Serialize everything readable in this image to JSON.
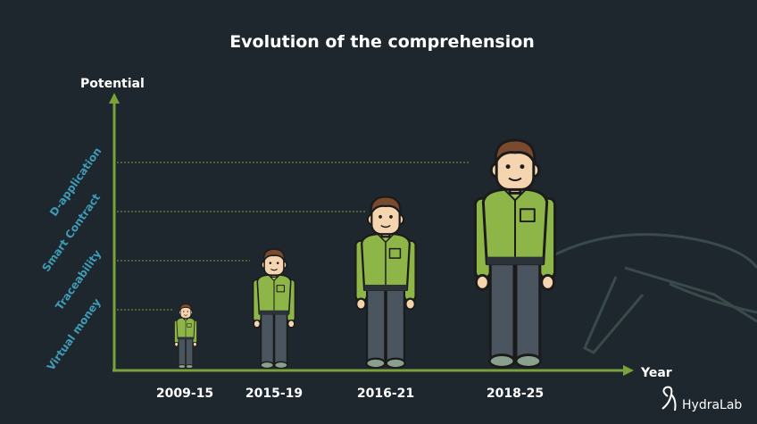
{
  "title": "Evolution of the comprehension",
  "y_axis": {
    "label": "Potential",
    "levels": [
      "Virtual money",
      "Traceability",
      "Smart Contract",
      "D-application"
    ]
  },
  "x_axis": {
    "label": "Year",
    "periods": [
      "2009-15",
      "2015-19",
      "2016-21",
      "2018-25"
    ]
  },
  "logo": "HydraLab"
}
